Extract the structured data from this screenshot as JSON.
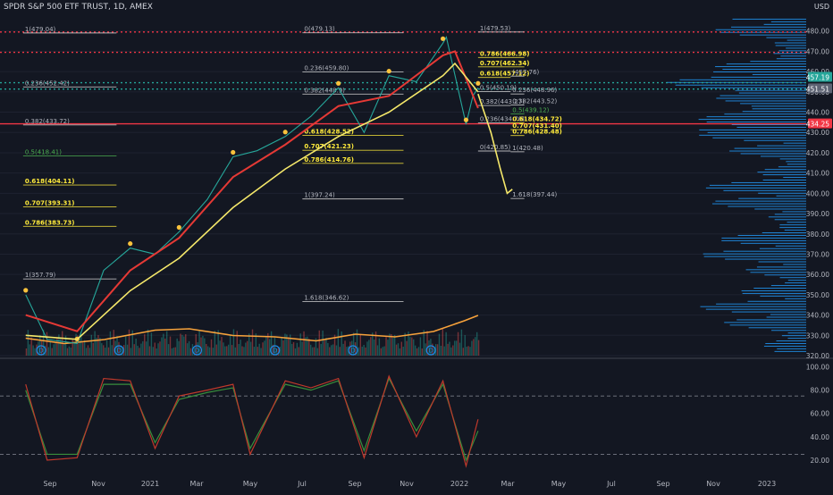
{
  "header": {
    "title": "SPDR S&P 500 ETF TRUST, 1D, AMEX",
    "currency": "USD"
  },
  "colors": {
    "background": "#131722",
    "grid": "#1e2230",
    "axis_text": "#b2b5be",
    "fib_line": "#d4d4d4",
    "fib_label": "#b2b5be",
    "fib_highlight": "#ffeb3b",
    "fib_mid": "#4caf50",
    "resistance_red": "#f23645",
    "dotted_green": "#26a69a",
    "ma_red": "#e53935",
    "ma_yellow": "#f5e86a",
    "volume_ma": "#f7a23b",
    "volume_profile": "#2196f3",
    "price_current_green": "#26a69a",
    "price_current_gray": "#5d6373",
    "price_red_tag": "#f23645",
    "stoch_k": "#c0392b",
    "stoch_d": "#388e3c",
    "dividend_marker": "#1e88e5",
    "signal_dot": "#f9c23c",
    "candle_up": "#26a69a",
    "candle_down": "#ef5350"
  },
  "chart_data": {
    "type": "line",
    "price_axis": {
      "ticks": [
        480,
        470,
        460,
        450,
        440,
        430,
        420,
        410,
        400,
        390,
        380,
        370,
        360,
        350,
        340,
        330,
        320
      ],
      "ylim": [
        320,
        490
      ]
    },
    "time_axis": {
      "labels": [
        "Sep",
        "Nov",
        "2021",
        "Mar",
        "May",
        "Jul",
        "Sep",
        "Nov",
        "2022",
        "Mar",
        "May",
        "Jul",
        "Sep",
        "Nov",
        "2023"
      ]
    },
    "series": [
      {
        "style": "close",
        "x": [
          "2020-08-31",
          "2020-09-25",
          "2020-10-30",
          "2020-11-30",
          "2020-12-31",
          "2021-01-29",
          "2021-02-26",
          "2021-03-31",
          "2021-04-30",
          "2021-05-28",
          "2021-06-30",
          "2021-07-30",
          "2021-08-31",
          "2021-09-30",
          "2021-10-29",
          "2021-11-30",
          "2021-12-31",
          "2022-01-04",
          "2022-01-27",
          "2022-02-04",
          "2022-02-10"
        ],
        "values": [
          350,
          328,
          326,
          362,
          373,
          370,
          381,
          397,
          418,
          421,
          428,
          438,
          452,
          430,
          458,
          455,
          474,
          477,
          434,
          448,
          452
        ]
      },
      {
        "style": "ma-red",
        "x": [
          "2020-08-31",
          "2020-10-30",
          "2020-12-31",
          "2021-02-26",
          "2021-04-30",
          "2021-06-30",
          "2021-08-31",
          "2021-10-29",
          "2021-12-31",
          "2022-01-14",
          "2022-02-10"
        ],
        "values": [
          340,
          332,
          362,
          378,
          408,
          424,
          443,
          448,
          468,
          470,
          442
        ]
      },
      {
        "style": "ma-yellow",
        "x": [
          "2020-08-31",
          "2020-10-30",
          "2020-12-31",
          "2021-02-26",
          "2021-04-30",
          "2021-06-30",
          "2021-08-31",
          "2021-10-29",
          "2021-12-31",
          "2022-01-14",
          "2022-02-10"
        ],
        "values": [
          330,
          328,
          352,
          368,
          393,
          412,
          428,
          440,
          458,
          464,
          450
        ]
      },
      {
        "style": "projection",
        "x": [
          "2022-02-10",
          "2022-02-25",
          "2022-03-08",
          "2022-03-16",
          "2022-03-22"
        ],
        "values": [
          449,
          430,
          412,
          400,
          402
        ]
      }
    ],
    "fibs": [
      {
        "label": "1(479.04)",
        "price": 479.04,
        "from": "2020-08-28",
        "to": "2020-12-15",
        "style": "plain"
      },
      {
        "label": "0(479.13)",
        "price": 479.13,
        "from": "2021-07-20",
        "to": "2021-11-15",
        "style": "plain"
      },
      {
        "label": "1(479.53)",
        "price": 479.53,
        "from": "2022-02-10",
        "to": "2022-04-05",
        "style": "plain"
      },
      {
        "label": "0.786(466.98)",
        "price": 466.98,
        "from": "2022-02-10",
        "to": "2022-04-05",
        "style": "highlight"
      },
      {
        "label": "0.707(462.34)",
        "price": 462.34,
        "from": "2022-02-10",
        "to": "2022-04-05",
        "style": "highlight"
      },
      {
        "label": "0.618(457.12)",
        "price": 457.12,
        "from": "2022-02-10",
        "to": "2022-03-20",
        "style": "highlight"
      },
      {
        "label": "(457.76)",
        "price": 457.76,
        "from": "2022-03-20",
        "to": "2022-04-05",
        "style": "plain"
      },
      {
        "label": "0.236(459.80)",
        "price": 459.8,
        "from": "2021-07-20",
        "to": "2021-11-15",
        "style": "plain"
      },
      {
        "label": "0.236(452.42)",
        "price": 452.42,
        "from": "2020-08-28",
        "to": "2020-12-15",
        "style": "plain"
      },
      {
        "label": "0.382(448.9)",
        "price": 448.9,
        "from": "2021-07-20",
        "to": "2021-11-15",
        "style": "plain"
      },
      {
        "label": "0.5(450.19)",
        "price": 450.19,
        "from": "2022-02-10",
        "to": "2022-03-20",
        "style": "plain"
      },
      {
        "label": "0.236(448.96)",
        "price": 448.96,
        "from": "2022-03-20",
        "to": "2022-04-05",
        "style": "plain"
      },
      {
        "label": "0.382(443.27)",
        "price": 443.27,
        "from": "2022-02-10",
        "to": "2022-03-20",
        "style": "plain"
      },
      {
        "label": "0.382(443.52)",
        "price": 443.52,
        "from": "2022-03-20",
        "to": "2022-04-05",
        "style": "plain"
      },
      {
        "label": "0.5(439.12)",
        "price": 439.12,
        "from": "2022-03-20",
        "to": "2022-04-05",
        "style": "mid"
      },
      {
        "label": "0.382(433.72)",
        "price": 433.72,
        "from": "2020-08-28",
        "to": "2020-12-15",
        "style": "plain"
      },
      {
        "label": "0.236(434.70)",
        "price": 434.7,
        "from": "2022-02-10",
        "to": "2022-03-20",
        "style": "plain"
      },
      {
        "label": "0.618(434.72)",
        "price": 434.72,
        "from": "2022-03-20",
        "to": "2022-04-05",
        "style": "highlight"
      },
      {
        "label": "0.707(431.40)",
        "price": 431.4,
        "from": "2022-03-20",
        "to": "2022-04-05",
        "style": "highlight"
      },
      {
        "label": "0.786(428.48)",
        "price": 428.48,
        "from": "2022-03-20",
        "to": "2022-04-05",
        "style": "highlight"
      },
      {
        "label": "0.618(428.52)",
        "price": 428.52,
        "from": "2021-07-20",
        "to": "2021-11-15",
        "style": "highlight"
      },
      {
        "label": "0.707(421.23)",
        "price": 421.23,
        "from": "2021-07-20",
        "to": "2021-11-15",
        "style": "highlight"
      },
      {
        "label": "0(420.85)",
        "price": 420.85,
        "from": "2022-02-10",
        "to": "2022-03-20",
        "style": "plain"
      },
      {
        "label": "1(420.48)",
        "price": 420.48,
        "from": "2022-03-20",
        "to": "2022-04-05",
        "style": "plain"
      },
      {
        "label": "0.5(418.41)",
        "price": 418.41,
        "from": "2020-08-28",
        "to": "2020-12-15",
        "style": "mid"
      },
      {
        "label": "0.786(414.76)",
        "price": 414.76,
        "from": "2021-07-20",
        "to": "2021-11-15",
        "style": "highlight"
      },
      {
        "label": "0.618(404.11)",
        "price": 404.11,
        "from": "2020-08-28",
        "to": "2020-12-15",
        "style": "highlight"
      },
      {
        "label": "1(397.24)",
        "price": 397.24,
        "from": "2021-07-20",
        "to": "2021-11-15",
        "style": "plain"
      },
      {
        "label": "1.618(397.44)",
        "price": 397.44,
        "from": "2022-03-20",
        "to": "2022-04-05",
        "style": "plain"
      },
      {
        "label": "0.707(393.31)",
        "price": 393.31,
        "from": "2020-08-28",
        "to": "2020-12-15",
        "style": "highlight"
      },
      {
        "label": "0.786(383.73)",
        "price": 383.73,
        "from": "2020-08-28",
        "to": "2020-12-15",
        "style": "highlight"
      },
      {
        "label": "1(357.79)",
        "price": 357.79,
        "from": "2020-08-28",
        "to": "2020-12-15",
        "style": "plain"
      },
      {
        "label": "1.618(346.62)",
        "price": 346.62,
        "from": "2021-07-20",
        "to": "2021-11-15",
        "style": "plain"
      }
    ],
    "horizontal_levels": [
      {
        "price": 479.53,
        "style": "dotted-red"
      },
      {
        "price": 469.5,
        "style": "dotted-red"
      },
      {
        "price": 454.5,
        "style": "dotted-green"
      },
      {
        "price": 451.4,
        "style": "dotted-green"
      },
      {
        "price": 434.25,
        "style": "solid-red"
      }
    ],
    "price_tags": [
      {
        "text": "457.19",
        "price": 457.19,
        "style": "green"
      },
      {
        "text": "451.51",
        "price": 451.51,
        "style": "gray"
      },
      {
        "text": "434.25",
        "price": 434.25,
        "style": "red"
      }
    ],
    "volume_ma": {
      "x": [
        "2020-08-31",
        "2020-10-15",
        "2020-12-01",
        "2021-01-29",
        "2021-03-10",
        "2021-04-30",
        "2021-06-18",
        "2021-08-05",
        "2021-09-20",
        "2021-11-05",
        "2021-12-20",
        "2022-01-25",
        "2022-02-10"
      ],
      "values": [
        0.65,
        0.45,
        0.6,
        0.95,
        1.0,
        0.75,
        0.7,
        0.55,
        0.8,
        0.7,
        0.9,
        1.3,
        1.5
      ]
    },
    "stochastic": {
      "ticks": [
        100,
        80,
        60,
        40,
        20
      ],
      "ylim": [
        10,
        105
      ],
      "levels": [
        75,
        25
      ],
      "x": [
        "2020-08-31",
        "2020-09-25",
        "2020-10-30",
        "2020-11-30",
        "2020-12-31",
        "2021-01-29",
        "2021-02-26",
        "2021-03-31",
        "2021-04-30",
        "2021-05-20",
        "2021-06-30",
        "2021-07-30",
        "2021-08-31",
        "2021-09-30",
        "2021-10-29",
        "2021-11-30",
        "2021-12-31",
        "2022-01-27",
        "2022-02-10"
      ],
      "k": [
        85,
        20,
        22,
        90,
        88,
        30,
        75,
        80,
        85,
        25,
        88,
        82,
        90,
        22,
        92,
        40,
        88,
        15,
        55
      ],
      "d": [
        80,
        25,
        25,
        85,
        85,
        35,
        72,
        78,
        82,
        30,
        85,
        80,
        88,
        28,
        90,
        45,
        85,
        20,
        45
      ]
    },
    "dividend_markers": [
      "2020-09-18",
      "2020-12-18",
      "2021-03-19",
      "2021-06-18",
      "2021-09-17",
      "2021-12-17"
    ],
    "dividend_label": "D"
  }
}
